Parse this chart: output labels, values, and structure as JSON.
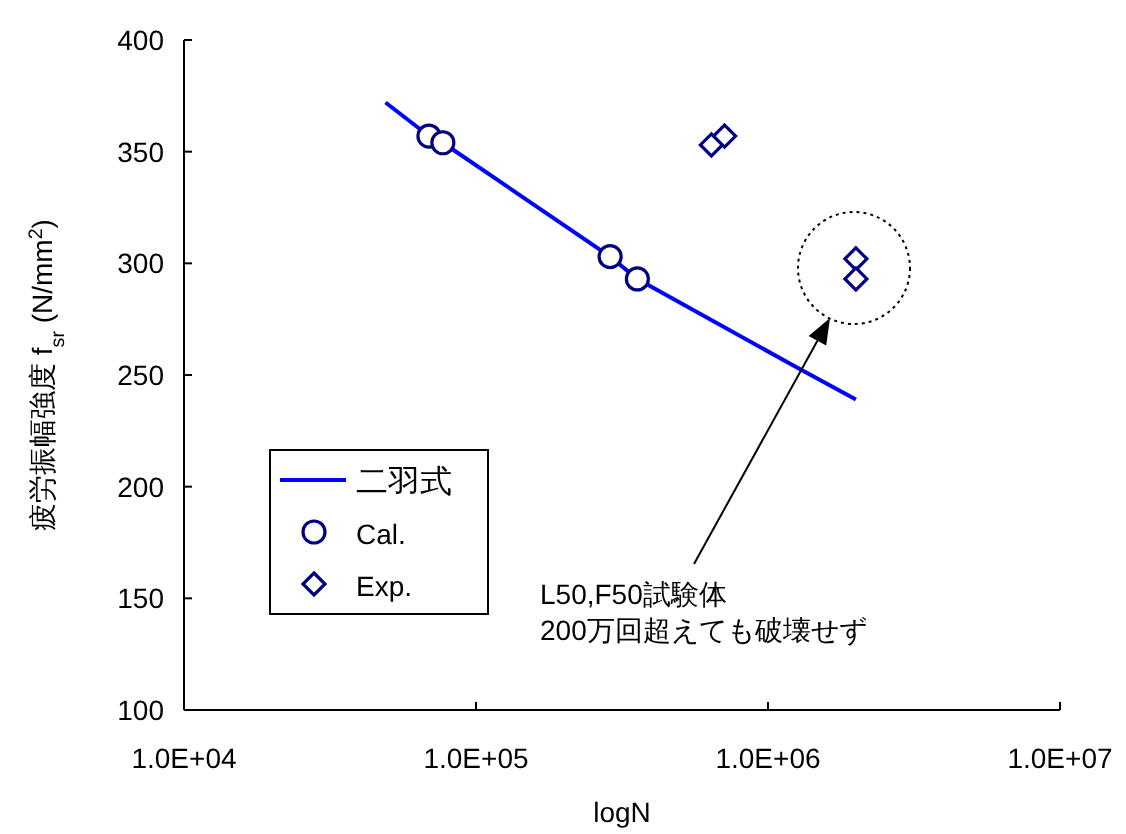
{
  "chart_data": {
    "type": "scatter",
    "xlabel": "logN",
    "ylabel": "疲労振幅強度 f$_{sr}$ (N/mm$^{2}$)",
    "log": "x",
    "xlim": [
      10000,
      10000000
    ],
    "ylim": [
      100,
      400
    ],
    "xticks": [
      {
        "value": 10000,
        "label": "1.0E+04"
      },
      {
        "value": 100000,
        "label": "1.0E+05"
      },
      {
        "value": 1000000,
        "label": "1.0E+06"
      },
      {
        "value": 10000000,
        "label": "1.0E+07"
      }
    ],
    "yticks": [
      100,
      150,
      200,
      250,
      300,
      350,
      400
    ],
    "grid": false,
    "legend": "left",
    "series": [
      {
        "name": "二羽式",
        "type": "line",
        "color": "#0000ff",
        "marker": "none",
        "line_style": "solid",
        "x": [
          49000,
          69000,
          77000,
          288000,
          357000,
          1230000,
          2000000
        ],
        "values": [
          372,
          357,
          354,
          303,
          293,
          254,
          239
        ]
      },
      {
        "name": "Cal.",
        "color": "#000080",
        "marker": "circle",
        "x": [
          69000,
          77000,
          288000,
          357000
        ],
        "values": [
          357,
          354,
          303,
          293
        ]
      },
      {
        "name": "Exp.",
        "color": "#000080",
        "marker": "diamond",
        "x": [
          640000,
          710000,
          2000000,
          2000000
        ],
        "values": [
          353,
          357,
          302,
          293
        ]
      }
    ],
    "annotations": [
      "L50,F50試験体\n200万回超えても破壊せず"
    ]
  }
}
